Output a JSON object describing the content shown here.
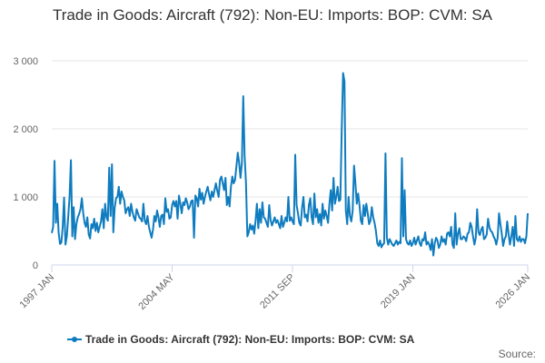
{
  "chart_data": {
    "type": "line",
    "title": "Trade in Goods: Aircraft (792): Non-EU: Imports: BOP: CVM: SA",
    "source": "Source:",
    "xlim": [
      "1997-01",
      "2026-01"
    ],
    "xticks": [
      {
        "value": "1997-01",
        "label": "1997 JAN"
      },
      {
        "value": "2004-05",
        "label": "2004 MAY"
      },
      {
        "value": "2011-09",
        "label": "2011 SEP"
      },
      {
        "value": "2019-01",
        "label": "2019 JAN"
      },
      {
        "value": "2026-01",
        "label": "2026 JAN"
      }
    ],
    "ylim": [
      0,
      3000
    ],
    "yticks": [
      0,
      {
        "value": 1000,
        "label": "1 000"
      },
      {
        "value": 2000,
        "label": "2 000"
      },
      {
        "value": 3000,
        "label": "3 000"
      }
    ],
    "grid": true,
    "legend": "bottom",
    "x": [
      "1997-01",
      "1997-02",
      "1997-03",
      "1997-04",
      "1997-05",
      "1997-06",
      "1997-07",
      "1997-08",
      "1997-09",
      "1997-10",
      "1997-11",
      "1997-12",
      "1998-01",
      "1998-02",
      "1998-03",
      "1998-04",
      "1998-05",
      "1998-06",
      "1998-07",
      "1998-08",
      "1998-09",
      "1998-10",
      "1998-11",
      "1998-12",
      "1999-01",
      "1999-02",
      "1999-03",
      "1999-04",
      "1999-05",
      "1999-06",
      "1999-07",
      "1999-08",
      "1999-09",
      "1999-10",
      "1999-11",
      "1999-12",
      "2000-01",
      "2000-02",
      "2000-03",
      "2000-04",
      "2000-05",
      "2000-06",
      "2000-07",
      "2000-08",
      "2000-09",
      "2000-10",
      "2000-11",
      "2000-12",
      "2001-01",
      "2001-02",
      "2001-03",
      "2001-04",
      "2001-05",
      "2001-06",
      "2001-07",
      "2001-08",
      "2001-09",
      "2001-10",
      "2001-11",
      "2001-12",
      "2002-01",
      "2002-02",
      "2002-03",
      "2002-04",
      "2002-05",
      "2002-06",
      "2002-07",
      "2002-08",
      "2002-09",
      "2002-10",
      "2002-11",
      "2002-12",
      "2003-01",
      "2003-02",
      "2003-03",
      "2003-04",
      "2003-05",
      "2003-06",
      "2003-07",
      "2003-08",
      "2003-09",
      "2003-10",
      "2003-11",
      "2003-12",
      "2004-01",
      "2004-02",
      "2004-03",
      "2004-04",
      "2004-05",
      "2004-06",
      "2004-07",
      "2004-08",
      "2004-09",
      "2004-10",
      "2004-11",
      "2004-12",
      "2005-01",
      "2005-02",
      "2005-03",
      "2005-04",
      "2005-05",
      "2005-06",
      "2005-07",
      "2005-08",
      "2005-09",
      "2005-10",
      "2005-11",
      "2005-12",
      "2006-01",
      "2006-02",
      "2006-03",
      "2006-04",
      "2006-05",
      "2006-06",
      "2006-07",
      "2006-08",
      "2006-09",
      "2006-10",
      "2006-11",
      "2006-12",
      "2007-01",
      "2007-02",
      "2007-03",
      "2007-04",
      "2007-05",
      "2007-06",
      "2007-07",
      "2007-08",
      "2007-09",
      "2007-10",
      "2007-11",
      "2007-12",
      "2008-01",
      "2008-02",
      "2008-03",
      "2008-04",
      "2008-05",
      "2008-06",
      "2008-07",
      "2008-08",
      "2008-09",
      "2008-10",
      "2008-11",
      "2008-12",
      "2009-01",
      "2009-02",
      "2009-03",
      "2009-04",
      "2009-05",
      "2009-06",
      "2009-07",
      "2009-08",
      "2009-09",
      "2009-10",
      "2009-11",
      "2009-12",
      "2010-01",
      "2010-02",
      "2010-03",
      "2010-04",
      "2010-05",
      "2010-06",
      "2010-07",
      "2010-08",
      "2010-09",
      "2010-10",
      "2010-11",
      "2010-12",
      "2011-01",
      "2011-02",
      "2011-03",
      "2011-04",
      "2011-05",
      "2011-06",
      "2011-07",
      "2011-08",
      "2011-09",
      "2011-10",
      "2011-11",
      "2011-12",
      "2012-01",
      "2012-02",
      "2012-03",
      "2012-04",
      "2012-05",
      "2012-06",
      "2012-07",
      "2012-08",
      "2012-09",
      "2012-10",
      "2012-11",
      "2012-12",
      "2013-01",
      "2013-02",
      "2013-03",
      "2013-04",
      "2013-05",
      "2013-06",
      "2013-07",
      "2013-08",
      "2013-09",
      "2013-10",
      "2013-11",
      "2013-12",
      "2014-01",
      "2014-02",
      "2014-03",
      "2014-04",
      "2014-05",
      "2014-06",
      "2014-07",
      "2014-08",
      "2014-09",
      "2014-10",
      "2014-11",
      "2014-12",
      "2015-01",
      "2015-02",
      "2015-03",
      "2015-04",
      "2015-05",
      "2015-06",
      "2015-07",
      "2015-08",
      "2015-09",
      "2015-10",
      "2015-11",
      "2015-12",
      "2016-01",
      "2016-02",
      "2016-03",
      "2016-04",
      "2016-05",
      "2016-06",
      "2016-07",
      "2016-08",
      "2016-09",
      "2016-10",
      "2016-11",
      "2016-12",
      "2017-01",
      "2017-02",
      "2017-03",
      "2017-04",
      "2017-05",
      "2017-06",
      "2017-07",
      "2017-08",
      "2017-09",
      "2017-10",
      "2017-11",
      "2017-12",
      "2018-01",
      "2018-02",
      "2018-03",
      "2018-04",
      "2018-05",
      "2018-06",
      "2018-07",
      "2018-08",
      "2018-09",
      "2018-10",
      "2018-11",
      "2018-12",
      "2019-01",
      "2019-02",
      "2019-03",
      "2019-04",
      "2019-05",
      "2019-06",
      "2019-07",
      "2019-08",
      "2019-09",
      "2019-10",
      "2019-11",
      "2019-12",
      "2020-01",
      "2020-02",
      "2020-03",
      "2020-04",
      "2020-05",
      "2020-06",
      "2020-07",
      "2020-08",
      "2020-09",
      "2020-10",
      "2020-11",
      "2020-12",
      "2021-01",
      "2021-02",
      "2021-03",
      "2021-04",
      "2021-05",
      "2021-06",
      "2021-07",
      "2021-08",
      "2021-09",
      "2021-10",
      "2021-11",
      "2021-12",
      "2022-01",
      "2022-02",
      "2022-03",
      "2022-04",
      "2022-05",
      "2022-06",
      "2022-07",
      "2022-08",
      "2022-09",
      "2022-10",
      "2022-11",
      "2022-12",
      "2023-01",
      "2023-02",
      "2023-03",
      "2023-04",
      "2023-05",
      "2023-06",
      "2023-07",
      "2023-08",
      "2023-09",
      "2023-10",
      "2023-11",
      "2023-12",
      "2024-01",
      "2024-02",
      "2024-03",
      "2024-04",
      "2024-05",
      "2024-06",
      "2024-07",
      "2024-08",
      "2024-09",
      "2024-10",
      "2024-11",
      "2024-12",
      "2025-01",
      "2025-02",
      "2025-03",
      "2025-04",
      "2025-05",
      "2025-06",
      "2025-07",
      "2025-08",
      "2025-09",
      "2025-10",
      "2025-11",
      "2025-12",
      "2026-01"
    ],
    "series": [
      {
        "name": "Trade in Goods: Aircraft (792): Non-EU: Imports: BOP: CVM: SA",
        "color": "#0f7cbf",
        "values": [
          470,
          560,
          1530,
          620,
          900,
          480,
          310,
          330,
          560,
          990,
          300,
          420,
          700,
          1000,
          1540,
          420,
          850,
          380,
          600,
          700,
          750,
          820,
          980,
          760,
          620,
          560,
          700,
          450,
          390,
          600,
          540,
          680,
          500,
          620,
          480,
          560,
          640,
          820,
          540,
          900,
          700,
          650,
          1430,
          720,
          1480,
          480,
          840,
          980,
          1000,
          1150,
          900,
          1080,
          1000,
          950,
          760,
          820,
          850,
          720,
          900,
          780,
          700,
          650,
          820,
          760,
          700,
          680,
          640,
          900,
          650,
          600,
          720,
          560,
          480,
          400,
          520,
          720,
          640,
          800,
          700,
          560,
          720,
          740,
          600,
          980,
          780,
          820,
          680,
          700,
          880,
          940,
          860,
          940,
          680,
          1020,
          900,
          760,
          920,
          880,
          980,
          920,
          820,
          860,
          940,
          950,
          400,
          1020,
          980,
          860,
          1120,
          960,
          1060,
          900,
          1000,
          1080,
          1150,
          1040,
          950,
          1080,
          1000,
          1100,
          1200,
          1090,
          1000,
          1250,
          1300,
          1200,
          1100,
          1280,
          880,
          1000,
          860,
          1150,
          1300,
          1200,
          1250,
          1450,
          1650,
          1500,
          1280,
          1500,
          2480,
          1600,
          1200,
          420,
          480,
          600,
          520,
          580,
          460,
          650,
          900,
          540,
          820,
          620,
          920,
          700,
          680,
          620,
          560,
          880,
          660,
          580,
          640,
          700,
          620,
          660,
          600,
          540,
          720,
          560,
          620,
          700,
          640,
          1000,
          650,
          700,
          640,
          600,
          1620,
          880,
          760,
          620,
          580,
          840,
          1000,
          700,
          740,
          640,
          880,
          980,
          700,
          600,
          1050,
          700,
          820,
          620,
          750,
          580,
          900,
          680,
          800,
          720,
          620,
          900,
          1100,
          800,
          1280,
          900,
          1000,
          1150,
          940,
          960,
          2000,
          2820,
          2700,
          800,
          600,
          1000,
          720,
          640,
          800,
          1460,
          1200,
          900,
          1050,
          880,
          650,
          600,
          880,
          720,
          900,
          760,
          600,
          650,
          850,
          700,
          620,
          500,
          320,
          280,
          360,
          260,
          300,
          320,
          1640,
          400,
          300,
          380,
          340,
          300,
          280,
          320,
          360,
          300,
          340,
          320,
          1570,
          420,
          1100,
          380,
          320,
          300,
          360,
          280,
          320,
          400,
          300,
          360,
          420,
          320,
          280,
          380,
          360,
          480,
          300,
          340,
          300,
          220,
          380,
          140,
          320,
          400,
          360,
          250,
          300,
          420,
          340,
          380,
          300,
          460,
          480,
          420,
          560,
          300,
          250,
          760,
          300,
          460,
          540,
          380,
          380,
          420,
          400,
          350,
          460,
          480,
          620,
          560,
          420,
          300,
          400,
          820,
          480,
          440,
          520,
          560,
          380,
          400,
          450,
          680,
          550,
          500,
          480,
          420,
          380,
          300,
          400,
          760,
          600,
          460,
          280,
          380,
          420,
          640,
          450,
          300,
          420,
          560,
          280,
          720,
          380,
          350,
          420,
          340,
          380,
          380,
          320,
          420,
          760
        ]
      }
    ]
  }
}
